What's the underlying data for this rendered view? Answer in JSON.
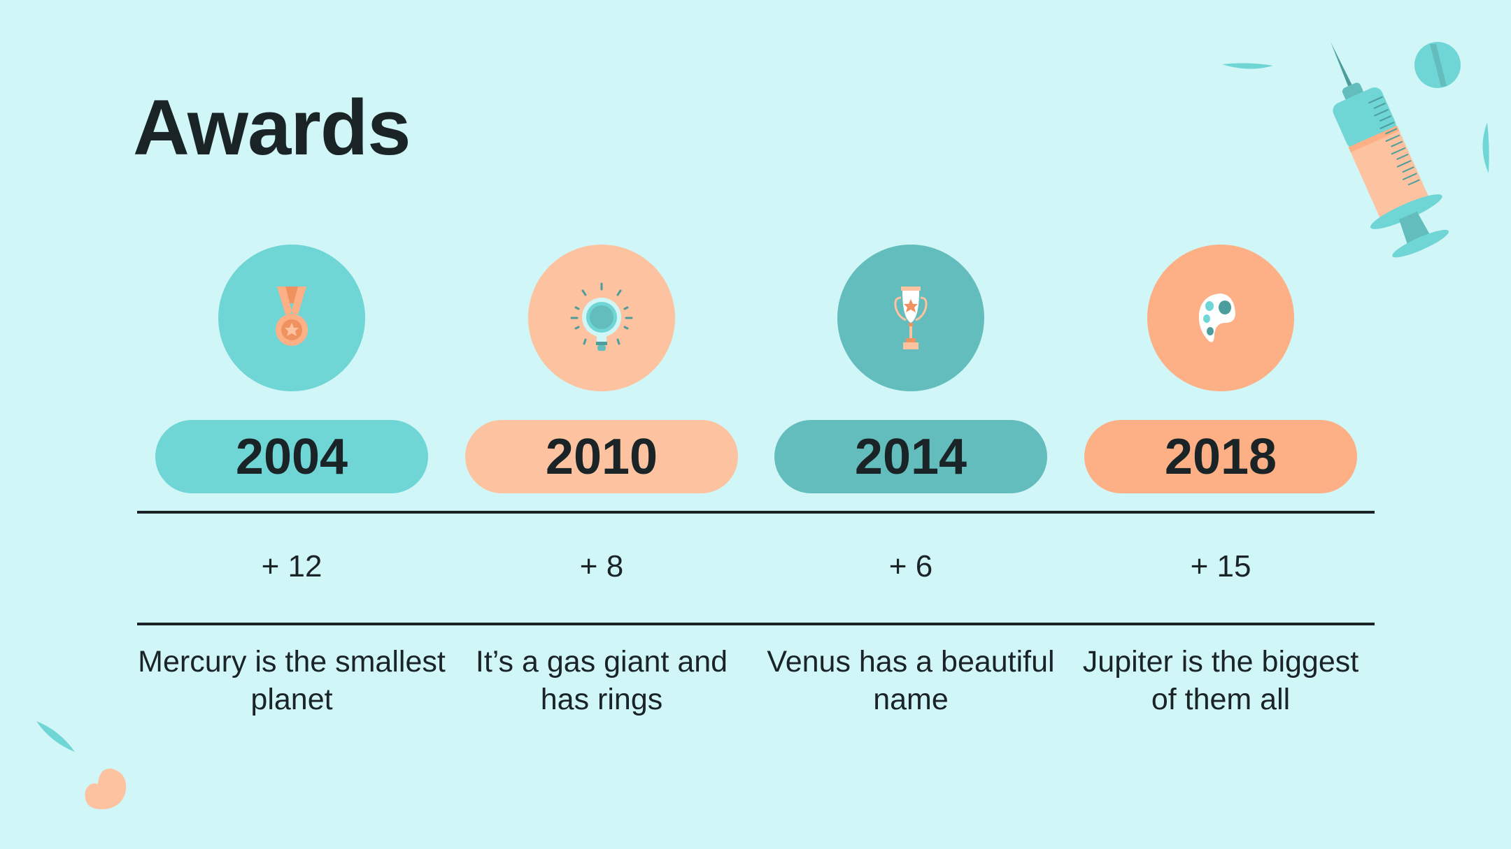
{
  "title": "Awards",
  "colors": {
    "background": "#d1f6f7",
    "teal": "#6fd6d5",
    "peach": "#fdc29f",
    "dark_teal": "#64bdbd",
    "orange": "#fdb085",
    "text": "#1a2326"
  },
  "awards": [
    {
      "year": "2004",
      "count": "+ 12",
      "description": "Mercury is the smallest planet",
      "icon": "medal-icon",
      "color": "#6fd6d5"
    },
    {
      "year": "2010",
      "count": "+ 8",
      "description": "It’s a gas giant and has rings",
      "icon": "lightbulb-icon",
      "color": "#fdc29f"
    },
    {
      "year": "2014",
      "count": "+ 6",
      "description": "Venus has a beautiful name",
      "icon": "trophy-icon",
      "color": "#64bdbd"
    },
    {
      "year": "2018",
      "count": "+ 15",
      "description": "Jupiter is the biggest of them all",
      "icon": "palette-icon",
      "color": "#fdb085"
    }
  ]
}
